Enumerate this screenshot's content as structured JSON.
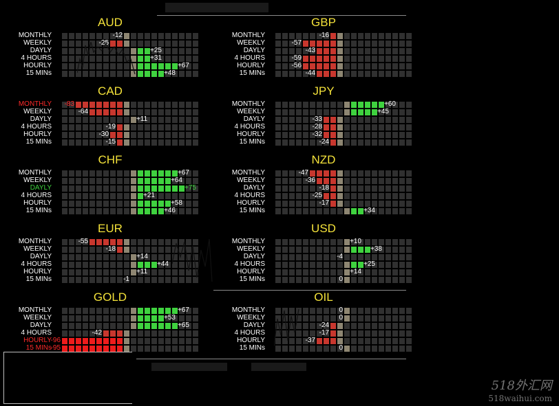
{
  "colors": {
    "title": "#f4e23a",
    "positive": "#3fd23f",
    "negative": "#c8372e",
    "strong_negative": "#ee1c1c",
    "neutral": "#8e8672",
    "empty_cell": "#303030",
    "label": "#ffffff",
    "label_red": "#ff2a2a",
    "label_green": "#3fd23f"
  },
  "panels": [
    {
      "title": "AUD",
      "rows": [
        {
          "label": "MONTHLY",
          "value": -12
        },
        {
          "label": "WEEKLY",
          "value": -25
        },
        {
          "label": "DAYLY",
          "value": 25
        },
        {
          "label": "4 HOURS",
          "value": 31
        },
        {
          "label": "HOURLY",
          "value": 67
        },
        {
          "label": "15 MINs",
          "value": 48
        }
      ]
    },
    {
      "title": "GBP",
      "rows": [
        {
          "label": "MONTHLY",
          "value": -16
        },
        {
          "label": "WEEKLY",
          "value": -57
        },
        {
          "label": "DAYLY",
          "value": -43
        },
        {
          "label": "4 HOURS",
          "value": -59
        },
        {
          "label": "HOURLY",
          "value": -56
        },
        {
          "label": "15 MINs",
          "value": -44
        }
      ]
    },
    {
      "title": "CAD",
      "rows": [
        {
          "label": "MONTHLY",
          "value": -83,
          "label_color": "red"
        },
        {
          "label": "WEEKLY",
          "value": -64
        },
        {
          "label": "DAYLY",
          "value": 11
        },
        {
          "label": "4 HOURS",
          "value": -19
        },
        {
          "label": "HOURLY",
          "value": -30
        },
        {
          "label": "15 MINs",
          "value": -15
        }
      ]
    },
    {
      "title": "JPY",
      "rows": [
        {
          "label": "MONTHLY",
          "value": 60
        },
        {
          "label": "WEEKLY",
          "value": 45
        },
        {
          "label": "DAYLY",
          "value": -33
        },
        {
          "label": "4 HOURS",
          "value": -28
        },
        {
          "label": "HOURLY",
          "value": -32
        },
        {
          "label": "15 MINs",
          "value": -24
        }
      ]
    },
    {
      "title": "CHF",
      "rows": [
        {
          "label": "MONTHLY",
          "value": 67
        },
        {
          "label": "WEEKLY",
          "value": 64
        },
        {
          "label": "DAYLY",
          "value": 75,
          "label_color": "green"
        },
        {
          "label": "4 HOURS",
          "value": 21
        },
        {
          "label": "HOURLY",
          "value": 58
        },
        {
          "label": "15 MINs",
          "value": 46
        }
      ]
    },
    {
      "title": "NZD",
      "rows": [
        {
          "label": "MONTHLY",
          "value": -47
        },
        {
          "label": "WEEKLY",
          "value": -36
        },
        {
          "label": "DAYLY",
          "value": -18
        },
        {
          "label": "4 HOURS",
          "value": -25
        },
        {
          "label": "HOURLY",
          "value": -17
        },
        {
          "label": "15 MINs",
          "value": 34
        }
      ]
    },
    {
      "title": "EUR",
      "rows": [
        {
          "label": "MONTHLY",
          "value": -55
        },
        {
          "label": "WEEKLY",
          "value": -18
        },
        {
          "label": "DAYLY",
          "value": 14
        },
        {
          "label": "4 HOURS",
          "value": 44
        },
        {
          "label": "HOURLY",
          "value": 11
        },
        {
          "label": "15 MINs",
          "value": -1
        }
      ]
    },
    {
      "title": "USD",
      "rows": [
        {
          "label": "MONTHLY",
          "value": 10
        },
        {
          "label": "WEEKLY",
          "value": 38
        },
        {
          "label": "DAYLY",
          "value": -4
        },
        {
          "label": "4 HOURS",
          "value": 25
        },
        {
          "label": "HOURLY",
          "value": 14
        },
        {
          "label": "15 MINs",
          "value": 0
        }
      ]
    },
    {
      "title": "GOLD",
      "rows": [
        {
          "label": "MONTHLY",
          "value": 67
        },
        {
          "label": "WEEKLY",
          "value": 53
        },
        {
          "label": "DAYLY",
          "value": 65
        },
        {
          "label": "4 HOURS",
          "value": -42
        },
        {
          "label": "HOURLY",
          "value": -96,
          "label_color": "red"
        },
        {
          "label": "15 MINs",
          "value": -95,
          "label_color": "red"
        }
      ]
    },
    {
      "title": "OIL",
      "rows": [
        {
          "label": "MONTHLY",
          "value": 0
        },
        {
          "label": "WEEKLY",
          "value": 0
        },
        {
          "label": "DAYLY",
          "value": -24
        },
        {
          "label": "4 HOURS",
          "value": -17
        },
        {
          "label": "HOURLY",
          "value": -37
        },
        {
          "label": "15 MINs",
          "value": 0
        }
      ]
    }
  ],
  "watermark": {
    "line1": "518外汇网",
    "line2": "518waihui.com"
  }
}
